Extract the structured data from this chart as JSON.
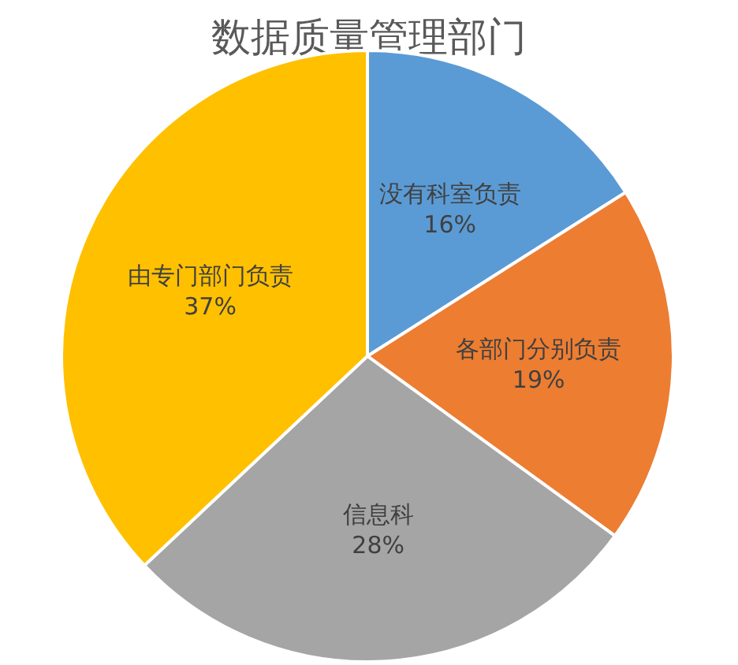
{
  "chart_data": {
    "type": "pie",
    "title": "数据质量管理部门",
    "categories": [
      "没有科室负责",
      "各部门分别负责",
      "信息科",
      "由专门部门负责"
    ],
    "values": [
      16,
      19,
      28,
      37
    ],
    "value_labels": [
      "16%",
      "19%",
      "28%",
      "37%"
    ],
    "colors": [
      "#5b9bd5",
      "#ed7d31",
      "#a5a5a5",
      "#ffc000"
    ],
    "legend": false
  }
}
